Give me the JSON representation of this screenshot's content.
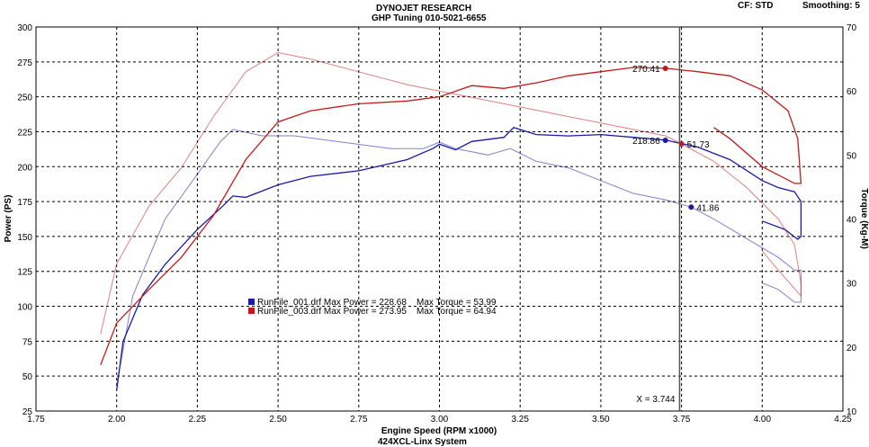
{
  "header": {
    "title": "DYNOJET RESEARCH",
    "subtitle": "GHP Tuning 010-5021-6655",
    "cf_label": "CF: STD",
    "smoothing_label": "Smoothing: 5"
  },
  "footer": "424XCL-Linx System",
  "cursor_label": "X = 3.744",
  "chart_data": {
    "type": "line",
    "xlabel": "Engine Speed (RPM x1000)",
    "ylabel_left": "Power (PS)",
    "ylabel_right": "Torque (Kg-M)",
    "xlim": [
      1.75,
      4.25
    ],
    "ylim_left": [
      25,
      300
    ],
    "ylim_right": [
      10,
      70
    ],
    "x_ticks": [
      "1.75",
      "2.00",
      "2.25",
      "2.50",
      "2.75",
      "3.00",
      "3.25",
      "3.50",
      "3.75",
      "4.00",
      "4.25"
    ],
    "y_left_ticks": [
      "25",
      "50",
      "75",
      "100",
      "125",
      "150",
      "175",
      "200",
      "225",
      "250",
      "275",
      "300"
    ],
    "y_right_ticks": [
      "10",
      "20",
      "30",
      "40",
      "50",
      "60",
      "70"
    ],
    "grid": true,
    "cursor_x": 3.744,
    "legend": [
      "RunFile_001.drf Max Power = 228.68    Max Torque = 53.99",
      "RunFile_003.drf Max Power = 273.95    Max Torque = 64.94"
    ],
    "series": [
      {
        "name": "RunFile_001.drf",
        "color": "#1a1aa6",
        "power": [
          [
            2.0,
            40
          ],
          [
            2.02,
            75
          ],
          [
            2.08,
            108
          ],
          [
            2.15,
            130
          ],
          [
            2.25,
            155
          ],
          [
            2.33,
            172
          ],
          [
            2.36,
            179
          ],
          [
            2.4,
            178
          ],
          [
            2.5,
            187
          ],
          [
            2.6,
            193
          ],
          [
            2.75,
            197
          ],
          [
            2.9,
            205
          ],
          [
            2.98,
            213
          ],
          [
            3.0,
            216
          ],
          [
            3.05,
            212
          ],
          [
            3.1,
            218
          ],
          [
            3.2,
            221
          ],
          [
            3.23,
            228
          ],
          [
            3.3,
            223
          ],
          [
            3.4,
            222
          ],
          [
            3.5,
            223
          ],
          [
            3.6,
            221
          ],
          [
            3.7,
            219
          ],
          [
            3.8,
            214
          ],
          [
            3.9,
            205
          ],
          [
            4.0,
            190
          ],
          [
            4.05,
            185
          ],
          [
            4.1,
            182
          ],
          [
            4.12,
            175
          ],
          [
            4.12,
            150
          ],
          [
            4.11,
            148
          ],
          [
            4.07,
            155
          ],
          [
            4.0,
            161
          ]
        ],
        "torque": [
          [
            2.0,
            14
          ],
          [
            2.05,
            28
          ],
          [
            2.15,
            40
          ],
          [
            2.25,
            47
          ],
          [
            2.32,
            52
          ],
          [
            2.36,
            54
          ],
          [
            2.45,
            53
          ],
          [
            2.55,
            53
          ],
          [
            2.7,
            52
          ],
          [
            2.85,
            51
          ],
          [
            2.95,
            51
          ],
          [
            3.0,
            52
          ],
          [
            3.05,
            51
          ],
          [
            3.15,
            50
          ],
          [
            3.22,
            51
          ],
          [
            3.3,
            49
          ],
          [
            3.4,
            48
          ],
          [
            3.5,
            46
          ],
          [
            3.6,
            44
          ],
          [
            3.7,
            43
          ],
          [
            3.78,
            41.86
          ],
          [
            3.85,
            40
          ],
          [
            3.95,
            37
          ],
          [
            4.05,
            34
          ],
          [
            4.1,
            32
          ],
          [
            4.12,
            32
          ],
          [
            4.12,
            27
          ],
          [
            4.1,
            27
          ],
          [
            4.05,
            29
          ],
          [
            4.0,
            30
          ]
        ]
      },
      {
        "name": "RunFile_003.drf",
        "color": "#c41a1a",
        "power": [
          [
            1.95,
            58
          ],
          [
            2.0,
            88
          ],
          [
            2.1,
            112
          ],
          [
            2.2,
            135
          ],
          [
            2.3,
            165
          ],
          [
            2.4,
            205
          ],
          [
            2.5,
            232
          ],
          [
            2.6,
            240
          ],
          [
            2.75,
            245
          ],
          [
            2.9,
            247
          ],
          [
            3.0,
            250
          ],
          [
            3.1,
            258
          ],
          [
            3.2,
            256
          ],
          [
            3.3,
            260
          ],
          [
            3.4,
            265
          ],
          [
            3.5,
            268
          ],
          [
            3.6,
            271
          ],
          [
            3.7,
            270.41
          ],
          [
            3.8,
            268
          ],
          [
            3.9,
            265
          ],
          [
            4.0,
            255
          ],
          [
            4.08,
            240
          ],
          [
            4.11,
            220
          ],
          [
            4.12,
            188
          ],
          [
            4.1,
            188
          ],
          [
            4.0,
            200
          ],
          [
            3.9,
            220
          ],
          [
            3.85,
            228
          ]
        ],
        "torque": [
          [
            1.95,
            22
          ],
          [
            2.0,
            33
          ],
          [
            2.1,
            42
          ],
          [
            2.2,
            48
          ],
          [
            2.3,
            56
          ],
          [
            2.4,
            63
          ],
          [
            2.5,
            66
          ],
          [
            2.6,
            65
          ],
          [
            2.75,
            63
          ],
          [
            2.9,
            61
          ],
          [
            3.0,
            60
          ],
          [
            3.1,
            59
          ],
          [
            3.2,
            58
          ],
          [
            3.3,
            57
          ],
          [
            3.4,
            56
          ],
          [
            3.5,
            55
          ],
          [
            3.6,
            54
          ],
          [
            3.7,
            53
          ],
          [
            3.75,
            51.73
          ],
          [
            3.85,
            49
          ],
          [
            3.95,
            45
          ],
          [
            4.05,
            40
          ],
          [
            4.1,
            36
          ],
          [
            4.12,
            30
          ],
          [
            4.12,
            28
          ],
          [
            4.05,
            32
          ],
          [
            4.0,
            35
          ]
        ]
      }
    ],
    "markers": [
      {
        "series": "RunFile_003.drf",
        "curve": "power",
        "x": 3.7,
        "y": 270.41,
        "label": "270.41"
      },
      {
        "series": "RunFile_001.drf",
        "curve": "power",
        "x": 3.7,
        "y": 218.86,
        "label": "218.86"
      },
      {
        "series": "RunFile_003.drf",
        "curve": "torque",
        "x": 3.75,
        "y": 51.73,
        "label": "51.73"
      },
      {
        "series": "RunFile_001.drf",
        "curve": "torque",
        "x": 3.78,
        "y": 41.86,
        "label": "41.86"
      }
    ]
  }
}
